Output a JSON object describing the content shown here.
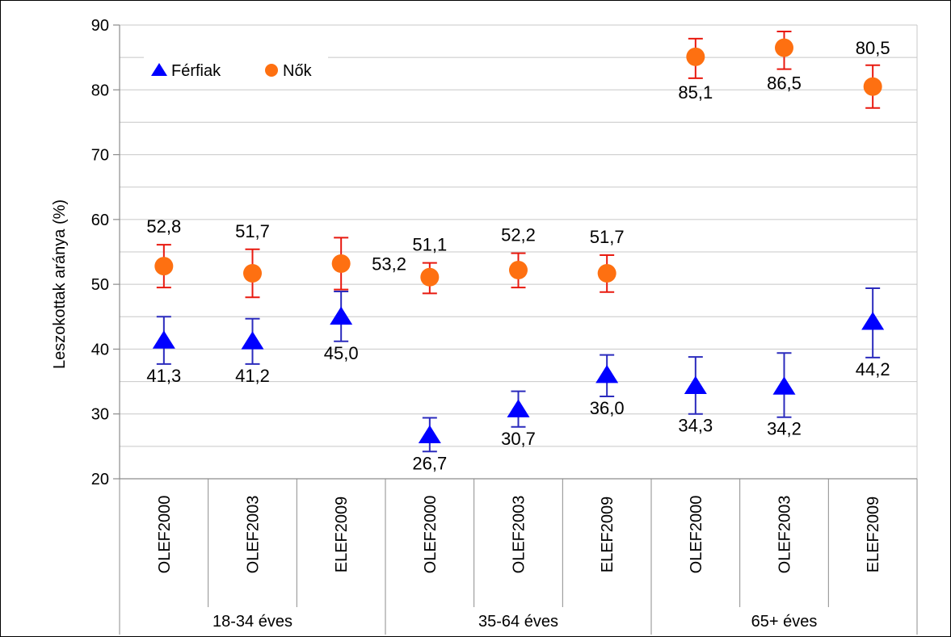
{
  "chart_data": {
    "type": "scatter",
    "title": "",
    "xlabel": "",
    "ylabel": "Leszokottak aránya (%)",
    "ylim": [
      20,
      90
    ],
    "yticks": [
      20,
      30,
      40,
      50,
      60,
      70,
      80,
      90
    ],
    "grid": true,
    "legend_position": "top-left",
    "categories": [
      "OLEF2000",
      "OLEF2003",
      "ELEF2009",
      "OLEF2000",
      "OLEF2003",
      "ELEF2009",
      "OLEF2000",
      "OLEF2003",
      "ELEF2009"
    ],
    "groups": [
      {
        "label": "18-34 éves",
        "start": 0,
        "count": 3
      },
      {
        "label": "35-64 éves",
        "start": 3,
        "count": 3
      },
      {
        "label": "65+ éves",
        "start": 6,
        "count": 3
      }
    ],
    "series": [
      {
        "name": "Férfiak",
        "marker": "triangle",
        "color": "#0000ff",
        "error_color": "#2b2bbd",
        "values": [
          41.3,
          41.2,
          45.0,
          26.7,
          30.7,
          36.0,
          34.3,
          34.2,
          44.2
        ],
        "labels": [
          "41,3",
          "41,2",
          "45,0",
          "26,7",
          "30,7",
          "36,0",
          "34,3",
          "34,2",
          "44,2"
        ],
        "err_low": [
          37.7,
          37.7,
          41.2,
          24.2,
          28.0,
          32.7,
          30.0,
          29.5,
          38.7
        ],
        "err_high": [
          45.0,
          44.7,
          48.9,
          29.4,
          33.5,
          39.1,
          38.8,
          39.4,
          49.4
        ]
      },
      {
        "name": "Nők",
        "marker": "circle",
        "color": "#fe7011",
        "error_color": "#e8190f",
        "values": [
          52.8,
          51.7,
          53.2,
          51.1,
          52.2,
          51.7,
          85.1,
          86.5,
          80.5
        ],
        "labels": [
          "52,8",
          "51,7",
          "53,2",
          "51,1",
          "52,2",
          "51,7",
          "85,1",
          "86,5",
          "80,5"
        ],
        "err_low": [
          49.5,
          48.0,
          49.2,
          48.6,
          49.5,
          48.8,
          81.8,
          83.2,
          77.2
        ],
        "err_high": [
          56.1,
          55.4,
          57.2,
          53.3,
          54.8,
          54.5,
          87.9,
          89.0,
          83.8
        ]
      }
    ]
  }
}
